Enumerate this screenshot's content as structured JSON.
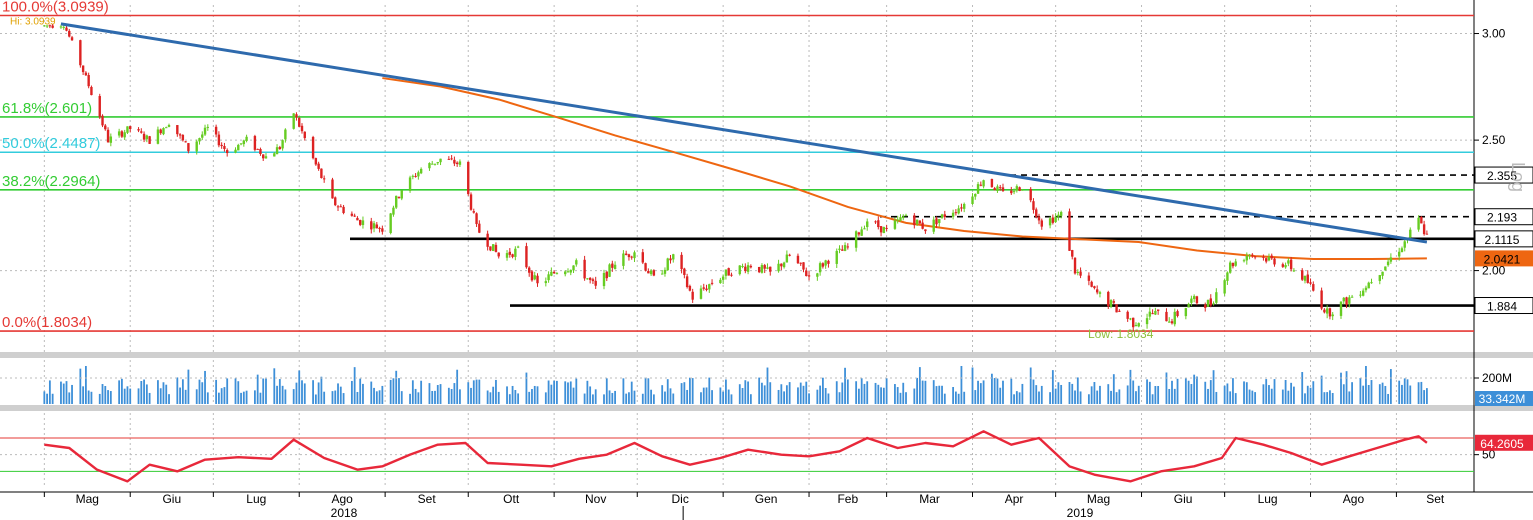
{
  "chart_data": [
    {
      "type": "candlestick",
      "panel": "price",
      "y_scale": "log",
      "ylim": [
        1.74,
        3.15
      ],
      "y_ticks": [
        "3.00",
        "2.50",
        "2.00"
      ],
      "side_label": "Log",
      "fib_levels": [
        {
          "label": "100.0%(3.0939)",
          "value": 3.0939,
          "color": "#e53935"
        },
        {
          "label": "61.8%(2.601)",
          "value": 2.601,
          "color": "#33cc33"
        },
        {
          "label": "50.0%(2.4487)",
          "value": 2.4487,
          "color": "#33ccdd"
        },
        {
          "label": "38.2%(2.2964)",
          "value": 2.2964,
          "color": "#33cc33"
        },
        {
          "label": "0.0%(1.8034)",
          "value": 1.8034,
          "color": "#e53935"
        }
      ],
      "top_label": "Hi: 3.0939",
      "low_label": "Low: 1.8034",
      "horizontal_levels": [
        {
          "value": 2.355,
          "label": "2.355",
          "style": "dashed"
        },
        {
          "value": 2.193,
          "label": "2.193",
          "style": "dashed"
        },
        {
          "value": 2.1115,
          "label": "2.1115",
          "style": "solid"
        },
        {
          "value": 1.884,
          "label": "1.884",
          "style": "solid"
        }
      ],
      "moving_average_last": {
        "value": 2.0421,
        "label": "2.0421",
        "color": "#ee6611"
      },
      "trendline": {
        "start": [
          "2018-05-07",
          3.05
        ],
        "end": [
          "2019-09-12",
          2.1
        ],
        "color": "#2e6aad"
      },
      "price_path": [
        [
          "2018-05-01",
          3.04
        ],
        [
          "2018-05-08",
          3.05
        ],
        [
          "2018-05-16",
          2.78
        ],
        [
          "2018-05-24",
          2.5
        ],
        [
          "2018-06-01",
          2.55
        ],
        [
          "2018-06-08",
          2.5
        ],
        [
          "2018-06-15",
          2.58
        ],
        [
          "2018-06-22",
          2.46
        ],
        [
          "2018-06-29",
          2.55
        ],
        [
          "2018-07-06",
          2.45
        ],
        [
          "2018-07-13",
          2.5
        ],
        [
          "2018-07-20",
          2.43
        ],
        [
          "2018-07-25",
          2.47
        ],
        [
          "2018-07-30",
          2.62
        ],
        [
          "2018-08-06",
          2.42
        ],
        [
          "2018-08-13",
          2.25
        ],
        [
          "2018-08-22",
          2.18
        ],
        [
          "2018-08-31",
          2.15
        ],
        [
          "2018-09-07",
          2.3
        ],
        [
          "2018-09-14",
          2.38
        ],
        [
          "2018-09-21",
          2.42
        ],
        [
          "2018-09-28",
          2.4
        ],
        [
          "2018-10-04",
          2.15
        ],
        [
          "2018-10-12",
          2.05
        ],
        [
          "2018-10-19",
          2.07
        ],
        [
          "2018-10-26",
          1.95
        ],
        [
          "2018-11-02",
          2.0
        ],
        [
          "2018-11-09",
          2.02
        ],
        [
          "2018-11-16",
          1.94
        ],
        [
          "2018-11-23",
          2.03
        ],
        [
          "2018-11-30",
          2.07
        ],
        [
          "2018-12-07",
          1.97
        ],
        [
          "2018-12-14",
          2.05
        ],
        [
          "2018-12-21",
          1.91
        ],
        [
          "2018-12-28",
          1.96
        ],
        [
          "2019-01-04",
          2.0
        ],
        [
          "2019-01-11",
          2.02
        ],
        [
          "2019-01-18",
          1.99
        ],
        [
          "2019-01-25",
          2.05
        ],
        [
          "2019-02-01",
          1.98
        ],
        [
          "2019-02-08",
          2.04
        ],
        [
          "2019-02-15",
          2.08
        ],
        [
          "2019-02-22",
          2.18
        ],
        [
          "2019-03-01",
          2.14
        ],
        [
          "2019-03-08",
          2.2
        ],
        [
          "2019-03-15",
          2.15
        ],
        [
          "2019-03-22",
          2.2
        ],
        [
          "2019-03-29",
          2.24
        ],
        [
          "2019-04-05",
          2.34
        ],
        [
          "2019-04-12",
          2.28
        ],
        [
          "2019-04-19",
          2.31
        ],
        [
          "2019-04-26",
          2.17
        ],
        [
          "2019-05-03",
          2.2
        ],
        [
          "2019-05-08",
          2.0
        ],
        [
          "2019-05-15",
          1.93
        ],
        [
          "2019-05-22",
          1.88
        ],
        [
          "2019-05-29",
          1.83
        ],
        [
          "2019-06-05",
          1.86
        ],
        [
          "2019-06-12",
          1.84
        ],
        [
          "2019-06-19",
          1.9
        ],
        [
          "2019-06-26",
          1.89
        ],
        [
          "2019-07-03",
          2.02
        ],
        [
          "2019-07-10",
          2.06
        ],
        [
          "2019-07-17",
          2.04
        ],
        [
          "2019-07-24",
          2.02
        ],
        [
          "2019-07-31",
          1.96
        ],
        [
          "2019-08-07",
          1.86
        ],
        [
          "2019-08-14",
          1.9
        ],
        [
          "2019-08-21",
          1.95
        ],
        [
          "2019-08-28",
          2.02
        ],
        [
          "2019-09-04",
          2.1
        ],
        [
          "2019-09-09",
          2.18
        ],
        [
          "2019-09-12",
          2.12
        ]
      ],
      "ma_path": [
        [
          "2018-08-31",
          2.78
        ],
        [
          "2018-09-21",
          2.74
        ],
        [
          "2018-10-12",
          2.68
        ],
        [
          "2018-11-02",
          2.6
        ],
        [
          "2018-11-23",
          2.52
        ],
        [
          "2018-12-14",
          2.45
        ],
        [
          "2019-01-04",
          2.38
        ],
        [
          "2019-01-25",
          2.31
        ],
        [
          "2019-02-15",
          2.23
        ],
        [
          "2019-03-08",
          2.17
        ],
        [
          "2019-03-29",
          2.14
        ],
        [
          "2019-04-19",
          2.12
        ],
        [
          "2019-05-10",
          2.11
        ],
        [
          "2019-05-31",
          2.1
        ],
        [
          "2019-06-21",
          2.07
        ],
        [
          "2019-07-12",
          2.05
        ],
        [
          "2019-08-02",
          2.04
        ],
        [
          "2019-08-23",
          2.04
        ],
        [
          "2019-09-12",
          2.042
        ]
      ]
    },
    {
      "type": "bar",
      "panel": "volume",
      "y_ticks": [
        "200M"
      ],
      "last_value_label": "33.342M",
      "color": "#3d8fd8"
    },
    {
      "type": "line",
      "panel": "rsi",
      "ylim": [
        10,
        100
      ],
      "y_ticks": [
        "50"
      ],
      "upper_line": 70,
      "lower_line": 30,
      "last_value_label": "64.2605",
      "color": "#e8283a",
      "rsi_path": [
        [
          "2018-05-01",
          62
        ],
        [
          "2018-05-10",
          58
        ],
        [
          "2018-05-20",
          32
        ],
        [
          "2018-05-31",
          18
        ],
        [
          "2018-06-08",
          38
        ],
        [
          "2018-06-18",
          30
        ],
        [
          "2018-06-28",
          44
        ],
        [
          "2018-07-10",
          47
        ],
        [
          "2018-07-22",
          45
        ],
        [
          "2018-07-30",
          68
        ],
        [
          "2018-08-10",
          46
        ],
        [
          "2018-08-22",
          32
        ],
        [
          "2018-08-31",
          36
        ],
        [
          "2018-09-10",
          50
        ],
        [
          "2018-09-20",
          62
        ],
        [
          "2018-09-30",
          64
        ],
        [
          "2018-10-08",
          40
        ],
        [
          "2018-10-20",
          38
        ],
        [
          "2018-10-31",
          36
        ],
        [
          "2018-11-10",
          45
        ],
        [
          "2018-11-20",
          50
        ],
        [
          "2018-11-30",
          64
        ],
        [
          "2018-12-10",
          48
        ],
        [
          "2018-12-20",
          38
        ],
        [
          "2018-12-31",
          46
        ],
        [
          "2019-01-10",
          56
        ],
        [
          "2019-01-22",
          50
        ],
        [
          "2019-02-01",
          48
        ],
        [
          "2019-02-12",
          54
        ],
        [
          "2019-02-22",
          70
        ],
        [
          "2019-03-05",
          58
        ],
        [
          "2019-03-15",
          64
        ],
        [
          "2019-03-25",
          60
        ],
        [
          "2019-04-05",
          78
        ],
        [
          "2019-04-15",
          62
        ],
        [
          "2019-04-25",
          70
        ],
        [
          "2019-05-06",
          36
        ],
        [
          "2019-05-15",
          26
        ],
        [
          "2019-05-28",
          18
        ],
        [
          "2019-06-08",
          30
        ],
        [
          "2019-06-20",
          36
        ],
        [
          "2019-06-30",
          46
        ],
        [
          "2019-07-05",
          70
        ],
        [
          "2019-07-15",
          62
        ],
        [
          "2019-07-25",
          52
        ],
        [
          "2019-08-05",
          38
        ],
        [
          "2019-08-15",
          48
        ],
        [
          "2019-08-25",
          58
        ],
        [
          "2019-09-04",
          68
        ],
        [
          "2019-09-09",
          72
        ],
        [
          "2019-09-12",
          64.26
        ]
      ]
    }
  ],
  "x_axis": {
    "months": [
      {
        "label": "Mag",
        "date": "2018-05-01"
      },
      {
        "label": "Giu",
        "date": "2018-06-01"
      },
      {
        "label": "Lug",
        "date": "2018-07-01"
      },
      {
        "label": "Ago",
        "date": "2018-08-01"
      },
      {
        "label": "Set",
        "date": "2018-09-01"
      },
      {
        "label": "Ott",
        "date": "2018-10-01"
      },
      {
        "label": "Nov",
        "date": "2018-11-01"
      },
      {
        "label": "Dic",
        "date": "2018-12-01"
      },
      {
        "label": "Gen",
        "date": "2019-01-01"
      },
      {
        "label": "Feb",
        "date": "2019-02-01"
      },
      {
        "label": "Mar",
        "date": "2019-03-01"
      },
      {
        "label": "Apr",
        "date": "2019-04-01"
      },
      {
        "label": "Mag",
        "date": "2019-05-01"
      },
      {
        "label": "Giu",
        "date": "2019-06-01"
      },
      {
        "label": "Lug",
        "date": "2019-07-01"
      },
      {
        "label": "Ago",
        "date": "2019-08-01"
      },
      {
        "label": "Set",
        "date": "2019-09-01"
      }
    ],
    "years": [
      "2018",
      "2019"
    ]
  }
}
